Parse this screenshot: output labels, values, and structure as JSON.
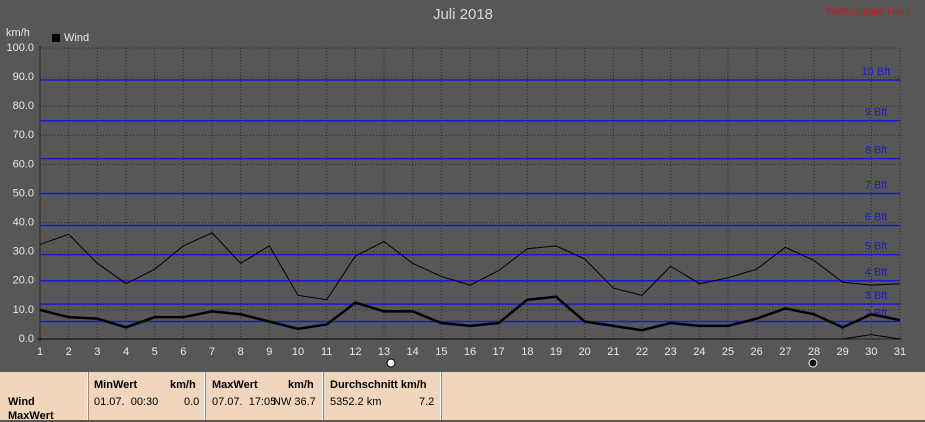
{
  "chart_data": {
    "type": "line",
    "title": "Juli 2018",
    "station": "Wetterstation Halle",
    "y_label": "km/h",
    "x": [
      1,
      2,
      3,
      4,
      5,
      6,
      7,
      8,
      9,
      10,
      11,
      12,
      13,
      14,
      15,
      16,
      17,
      18,
      19,
      20,
      21,
      22,
      23,
      24,
      25,
      26,
      27,
      28,
      29,
      30,
      31
    ],
    "xlim": [
      1,
      31
    ],
    "xticks": [
      1,
      2,
      3,
      4,
      5,
      6,
      7,
      8,
      9,
      10,
      11,
      12,
      13,
      14,
      15,
      16,
      17,
      18,
      19,
      20,
      21,
      22,
      23,
      24,
      25,
      26,
      27,
      28,
      29,
      30,
      31
    ],
    "ylim": [
      0,
      100
    ],
    "yticks": [
      {
        "value": 0,
        "label": "0.0"
      },
      {
        "value": 10,
        "label": "10.0"
      },
      {
        "value": 20,
        "label": "20.0"
      },
      {
        "value": 30,
        "label": "30.0"
      },
      {
        "value": 40,
        "label": "40.0"
      },
      {
        "value": 50,
        "label": "50.0"
      },
      {
        "value": 60,
        "label": "60.0"
      },
      {
        "value": 70,
        "label": "70.0"
      },
      {
        "value": 80,
        "label": "80.0"
      },
      {
        "value": 90,
        "label": "90.0"
      },
      {
        "value": 100,
        "label": "100.0"
      }
    ],
    "grid": true,
    "series": [
      {
        "name": "Wind",
        "color": "#000000",
        "values": [
          10,
          7.5,
          7,
          4,
          7.5,
          7.5,
          9.5,
          8.5,
          6,
          3.5,
          5,
          12.5,
          9.5,
          9.5,
          5.5,
          4.5,
          5.5,
          13.5,
          14.5,
          6,
          4.5,
          3,
          5.5,
          4.5,
          4.5,
          7,
          10.5,
          8.5,
          4,
          8.5,
          6.5
        ]
      }
    ],
    "upper": {
      "color": "#000000",
      "values": [
        32.5,
        36,
        26,
        19,
        24,
        32,
        36.5,
        26,
        32,
        15,
        13.5,
        28.5,
        33.5,
        26,
        21.5,
        18.5,
        23.5,
        31,
        32,
        27.5,
        17.5,
        15,
        25,
        19,
        21,
        24,
        31.5,
        27,
        19.5,
        18.5,
        19
      ]
    },
    "lower": {
      "color": "#000000",
      "values": [
        0,
        0,
        0,
        0,
        0,
        0,
        0,
        0,
        0,
        0,
        0,
        0,
        0,
        0,
        0,
        0,
        0,
        0,
        0,
        0,
        0,
        0,
        0,
        0,
        0,
        0,
        0,
        0,
        0,
        1.5,
        0
      ]
    },
    "bft_color": "#1a1ad0",
    "bft_lines": [
      {
        "value": 6,
        "label": "2 Bft"
      },
      {
        "value": 12,
        "label": "3 Bft"
      },
      {
        "value": 20,
        "label": "4 Bft"
      },
      {
        "value": 29,
        "label": "5 Bft"
      },
      {
        "value": 39,
        "label": "6 Bft"
      },
      {
        "value": 50,
        "label": "7 Bft"
      },
      {
        "value": 62,
        "label": "8 Bft"
      },
      {
        "value": 75,
        "label": "9 Bft"
      },
      {
        "value": 89,
        "label": "10 Bft"
      }
    ]
  },
  "table": {
    "row_labels": [
      "Wind",
      "MaxWert"
    ],
    "min": {
      "title": "MinWert",
      "unit": "km/h",
      "date": "01.07.  00:30",
      "value": "0.0"
    },
    "max": {
      "title": "MaxWert",
      "unit": "km/h",
      "date": "07.07.  17:05",
      "value": "NW 36.7"
    },
    "avg": {
      "title": "Durchschnitt km/h",
      "total": "5352.2 km",
      "value": "7.2"
    }
  }
}
